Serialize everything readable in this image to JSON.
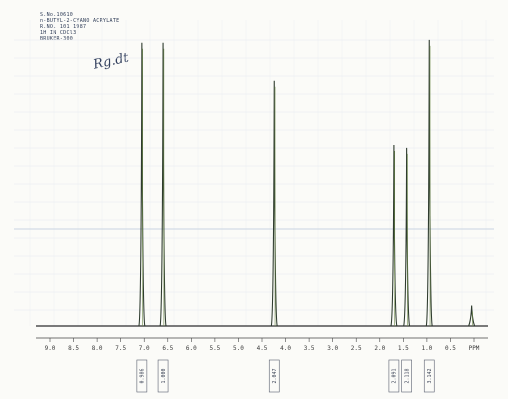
{
  "header": {
    "lines": [
      "S.No.10610",
      "n-BUTYL-2-CYANO ACRYLATE",
      "R.NO. 101 1987",
      "1H IN CDCl3",
      "BRUKER-300"
    ],
    "signature": "Rg.dt"
  },
  "chart_data": {
    "type": "line",
    "title": "",
    "xlabel": "PPM",
    "ylabel": "",
    "xlim": [
      9.0,
      -0.2
    ],
    "x_reversed": true,
    "ticks": [
      "9.0",
      "8.5",
      "8.0",
      "7.5",
      "7.0",
      "6.5",
      "6.0",
      "5.5",
      "5.0",
      "4.5",
      "4.0",
      "3.5",
      "3.0",
      "2.5",
      "2.0",
      "1.5",
      "1.0",
      "0.5",
      "PPM"
    ],
    "tick_values": [
      9.0,
      8.5,
      8.0,
      7.5,
      7.0,
      6.5,
      6.0,
      5.5,
      5.0,
      4.5,
      4.0,
      3.5,
      3.0,
      2.5,
      2.0,
      1.5,
      1.0,
      0.5,
      0.0
    ],
    "peaks": [
      {
        "ppm": 7.05,
        "height": 0.97
      },
      {
        "ppm": 6.6,
        "height": 0.97
      },
      {
        "ppm": 4.24,
        "height": 0.84
      },
      {
        "ppm": 1.7,
        "height": 0.62
      },
      {
        "ppm": 1.43,
        "height": 0.61
      },
      {
        "ppm": 0.95,
        "height": 0.98
      },
      {
        "ppm": 0.05,
        "height": 0.07
      }
    ],
    "integrals": [
      {
        "ppm": 7.05,
        "label": "0.986"
      },
      {
        "ppm": 6.6,
        "label": "1.000"
      },
      {
        "ppm": 4.24,
        "label": "2.047"
      },
      {
        "ppm": 1.7,
        "label": "2.091"
      },
      {
        "ppm": 1.43,
        "label": "2.118"
      },
      {
        "ppm": 0.95,
        "label": "3.142"
      }
    ],
    "grid": true
  }
}
